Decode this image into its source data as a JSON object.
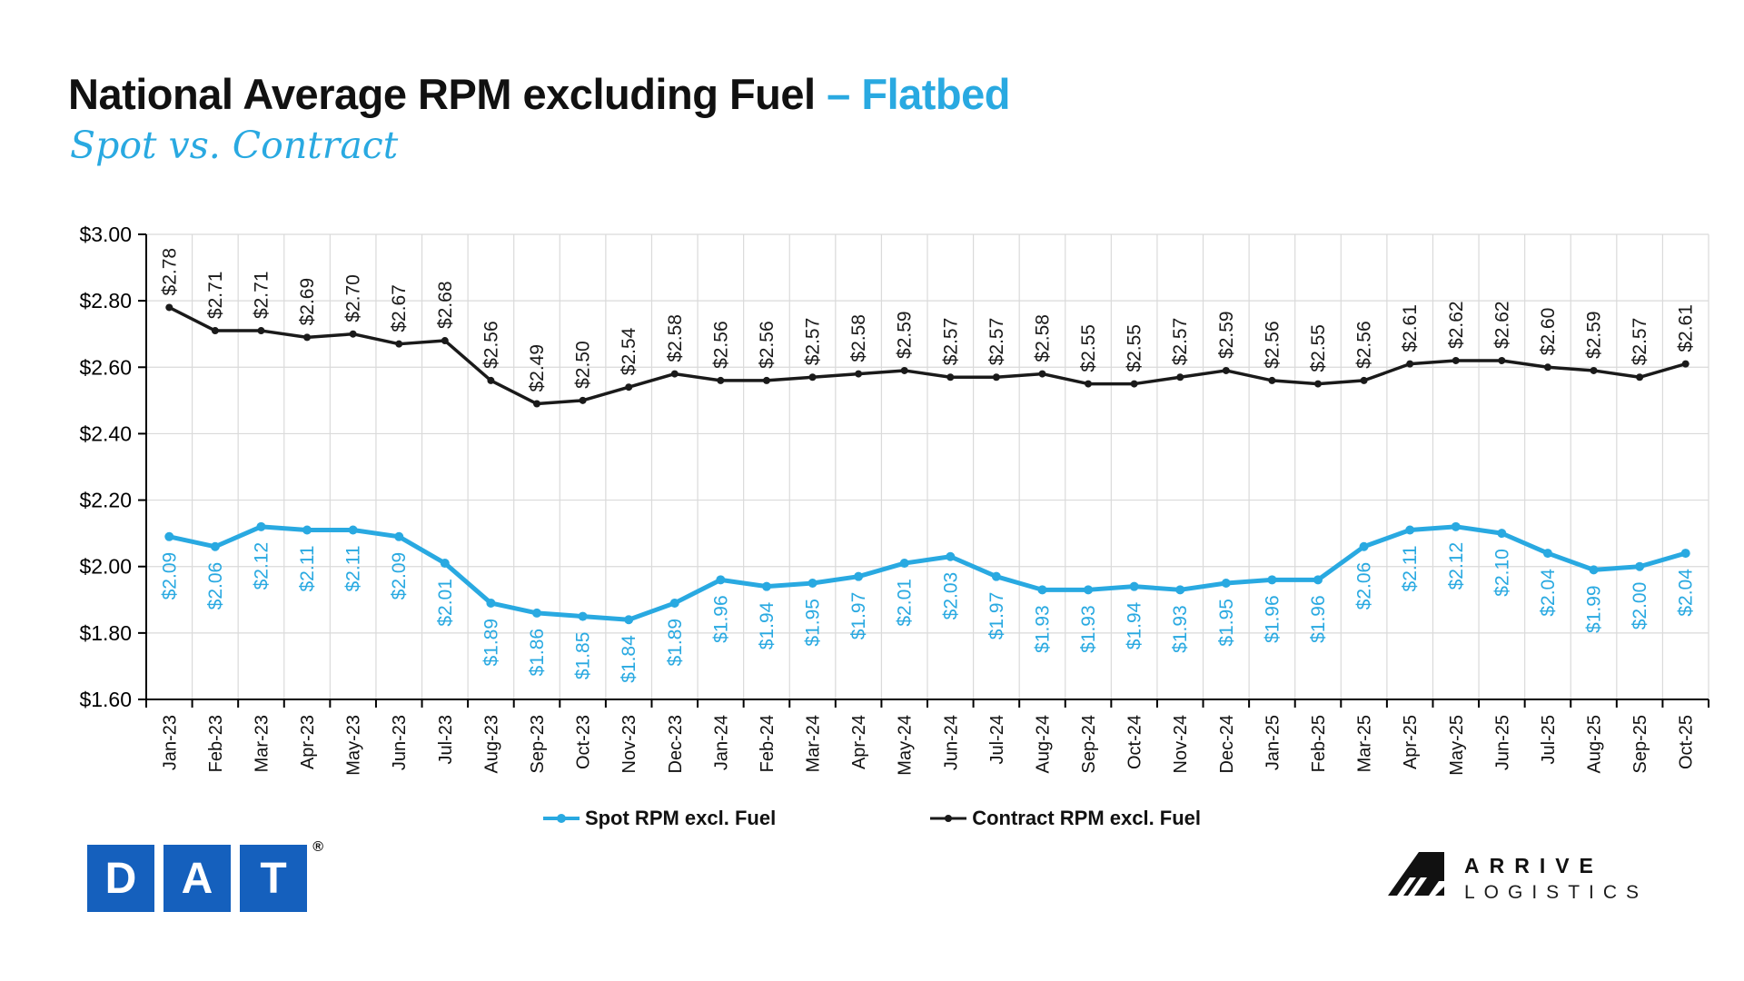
{
  "header": {
    "title": "National Average RPM excluding Fuel",
    "title_accent": "– Flatbed",
    "subtitle": "Spot vs. Contract"
  },
  "chart_data": {
    "type": "line",
    "title": "National Average RPM excluding Fuel – Flatbed",
    "subtitle": "Spot vs. Contract",
    "categories": [
      "Jan-23",
      "Feb-23",
      "Mar-23",
      "Apr-23",
      "May-23",
      "Jun-23",
      "Jul-23",
      "Aug-23",
      "Sep-23",
      "Oct-23",
      "Nov-23",
      "Dec-23",
      "Jan-24",
      "Feb-24",
      "Mar-24",
      "Apr-24",
      "May-24",
      "Jun-24",
      "Jul-24",
      "Aug-24",
      "Sep-24",
      "Oct-24",
      "Nov-24",
      "Dec-24",
      "Jan-25",
      "Feb-25",
      "Mar-25",
      "Apr-25",
      "May-25",
      "Jun-25",
      "Jul-25",
      "Aug-25",
      "Sep-25",
      "Oct-25"
    ],
    "series": [
      {
        "name": "Spot RPM excl. Fuel",
        "color": "#29A9E1",
        "label_side": "below",
        "stroke_width": 5,
        "marker_radius": 5,
        "values": [
          2.09,
          2.06,
          2.12,
          2.11,
          2.11,
          2.09,
          2.01,
          1.89,
          1.86,
          1.85,
          1.84,
          1.89,
          1.96,
          1.94,
          1.95,
          1.97,
          2.01,
          2.03,
          1.97,
          1.93,
          1.93,
          1.94,
          1.93,
          1.95,
          1.96,
          1.96,
          2.06,
          2.11,
          2.12,
          2.1,
          2.04,
          1.99,
          2.0,
          2.04
        ]
      },
      {
        "name": "Contract RPM excl. Fuel",
        "color": "#1A1A1A",
        "label_side": "above",
        "stroke_width": 3.5,
        "marker_radius": 4,
        "values": [
          2.78,
          2.71,
          2.71,
          2.69,
          2.7,
          2.67,
          2.68,
          2.56,
          2.49,
          2.5,
          2.54,
          2.58,
          2.56,
          2.56,
          2.57,
          2.58,
          2.59,
          2.57,
          2.57,
          2.58,
          2.55,
          2.55,
          2.57,
          2.59,
          2.56,
          2.55,
          2.56,
          2.61,
          2.62,
          2.62,
          2.6,
          2.59,
          2.57,
          2.61
        ]
      }
    ],
    "ylim": [
      1.6,
      3.0
    ],
    "y_tick_step": 0.2,
    "y_tick_labels": [
      "$1.60",
      "$1.80",
      "$2.00",
      "$2.20",
      "$2.40",
      "$2.60",
      "$2.80",
      "$3.00"
    ],
    "grid": true,
    "legend_position": "bottom",
    "point_label_format": "$0.00"
  },
  "legend": {
    "items": [
      {
        "label": "Spot RPM excl. Fuel",
        "color": "#29A9E1"
      },
      {
        "label": "Contract RPM excl. Fuel",
        "color": "#1A1A1A"
      }
    ]
  },
  "footer": {
    "dat_logo": {
      "letters": [
        "D",
        "A",
        "T"
      ],
      "registered_mark": "®",
      "color": "#1560BD"
    },
    "arrive_logo": {
      "line1": "ARRIVE",
      "line2": "LOGISTICS"
    }
  },
  "colors": {
    "accent_blue": "#29A9E1",
    "contract_black": "#1A1A1A",
    "grid_gray": "#DADADA"
  }
}
